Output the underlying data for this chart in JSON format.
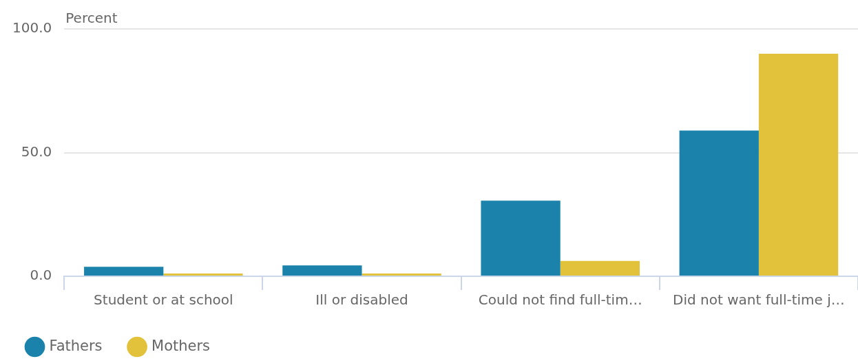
{
  "chart_data": {
    "type": "bar",
    "ylabel": "Percent",
    "categories": [
      "Student or at school",
      "Ill or disabled",
      "Could not find full-tim…",
      "Did not want full-time j…"
    ],
    "series": [
      {
        "name": "Fathers",
        "color": "#1b83ab",
        "values": [
          3.8,
          4.4,
          30.6,
          58.9
        ]
      },
      {
        "name": "Mothers",
        "color": "#e2c23a",
        "values": [
          1.1,
          1.1,
          6.2,
          90.0
        ]
      }
    ],
    "ylim": [
      0,
      100
    ],
    "yticks": [
      {
        "value": 0,
        "label": "0.0"
      },
      {
        "value": 50,
        "label": "50.0"
      },
      {
        "value": 100,
        "label": "100.0"
      }
    ],
    "grid": "y",
    "legend": "bottom left"
  }
}
